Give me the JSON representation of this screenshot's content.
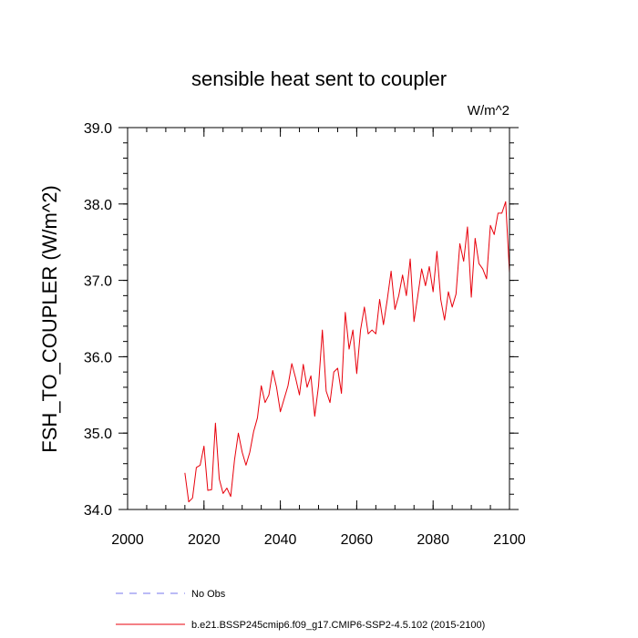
{
  "chart_data": {
    "type": "line",
    "title": "sensible heat sent to coupler",
    "units": "W/m^2",
    "ylabel": "FSH_TO_COUPLER  (W/m^2)",
    "xlabel": "",
    "xlim": [
      2000,
      2100
    ],
    "ylim": [
      34.0,
      39.0
    ],
    "x_ticks": [
      2000,
      2020,
      2040,
      2060,
      2080,
      2100
    ],
    "y_ticks": [
      "34.0",
      "35.0",
      "36.0",
      "37.0",
      "38.0",
      "39.0"
    ],
    "grid": false,
    "legend_position": "bottom",
    "legend": [
      {
        "label": "No Obs",
        "color": "#7777ee",
        "dash": "dashed"
      },
      {
        "label": "b.e21.BSSP245cmip6.f09_g17.CMIP6-SSP2-4.5.102 (2015-2100)",
        "color": "#e8000b",
        "dash": "solid"
      }
    ],
    "series": [
      {
        "name": "b.e21.BSSP245cmip6.f09_g17.CMIP6-SSP2-4.5.102 (2015-2100)",
        "color": "#e8000b",
        "x": [
          2015,
          2016,
          2017,
          2018,
          2019,
          2020,
          2021,
          2022,
          2023,
          2024,
          2025,
          2026,
          2027,
          2028,
          2029,
          2030,
          2031,
          2032,
          2033,
          2034,
          2035,
          2036,
          2037,
          2038,
          2039,
          2040,
          2041,
          2042,
          2043,
          2044,
          2045,
          2046,
          2047,
          2048,
          2049,
          2050,
          2051,
          2052,
          2053,
          2054,
          2055,
          2056,
          2057,
          2058,
          2059,
          2060,
          2061,
          2062,
          2063,
          2064,
          2065,
          2066,
          2067,
          2068,
          2069,
          2070,
          2071,
          2072,
          2073,
          2074,
          2075,
          2076,
          2077,
          2078,
          2079,
          2080,
          2081,
          2082,
          2083,
          2084,
          2085,
          2086,
          2087,
          2088,
          2089,
          2090,
          2091,
          2092,
          2093,
          2094,
          2095,
          2096,
          2097,
          2098,
          2099,
          2100
        ],
        "y": [
          34.48,
          34.1,
          34.15,
          34.55,
          34.58,
          34.83,
          34.25,
          34.26,
          35.13,
          34.4,
          34.21,
          34.28,
          34.17,
          34.65,
          35.0,
          34.75,
          34.58,
          34.75,
          35.02,
          35.2,
          35.62,
          35.4,
          35.5,
          35.82,
          35.6,
          35.28,
          35.45,
          35.62,
          35.91,
          35.72,
          35.5,
          35.9,
          35.6,
          35.75,
          35.22,
          35.62,
          36.35,
          35.55,
          35.4,
          35.8,
          35.85,
          35.52,
          36.58,
          36.1,
          36.35,
          35.78,
          36.35,
          36.65,
          36.3,
          36.35,
          36.3,
          36.75,
          36.42,
          36.75,
          37.12,
          36.62,
          36.8,
          37.07,
          36.8,
          37.28,
          36.46,
          36.8,
          37.15,
          36.93,
          37.18,
          36.85,
          37.38,
          36.75,
          36.48,
          36.85,
          36.65,
          36.82,
          37.48,
          37.25,
          37.7,
          36.78,
          37.55,
          37.22,
          37.15,
          37.02,
          37.72,
          37.6,
          37.88,
          37.88,
          38.03,
          37.1
        ]
      }
    ]
  }
}
